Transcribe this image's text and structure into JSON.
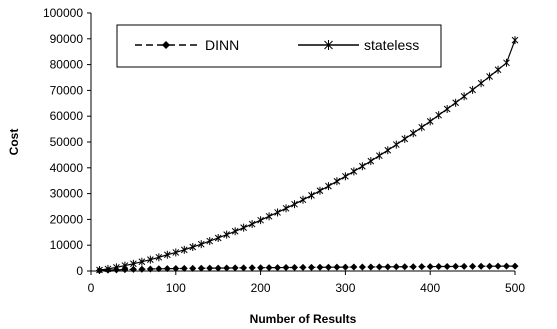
{
  "chart_data": {
    "type": "line",
    "xlabel": "Number of Results",
    "ylabel": "Cost",
    "xlim": [
      0,
      500
    ],
    "ylim": [
      0,
      100000
    ],
    "xticks": [
      0,
      100,
      200,
      300,
      400,
      500
    ],
    "yticks": [
      0,
      10000,
      20000,
      30000,
      40000,
      50000,
      60000,
      70000,
      80000,
      90000,
      100000
    ],
    "grid": false,
    "legend_position": "top-center",
    "series": [
      {
        "name": "DINN",
        "line_style": "dashed",
        "marker": "diamond",
        "color": "#000000",
        "x": [
          10,
          20,
          30,
          40,
          50,
          60,
          70,
          80,
          90,
          100,
          110,
          120,
          130,
          140,
          150,
          160,
          170,
          180,
          190,
          200,
          210,
          220,
          230,
          240,
          250,
          260,
          270,
          280,
          290,
          300,
          310,
          320,
          330,
          340,
          350,
          360,
          370,
          380,
          390,
          400,
          410,
          420,
          430,
          440,
          450,
          460,
          470,
          480,
          490,
          500
        ],
        "y": [
          200,
          350,
          450,
          550,
          650,
          700,
          780,
          850,
          900,
          950,
          1000,
          1030,
          1060,
          1100,
          1130,
          1160,
          1190,
          1220,
          1250,
          1280,
          1300,
          1330,
          1350,
          1380,
          1400,
          1420,
          1450,
          1470,
          1490,
          1510,
          1530,
          1550,
          1570,
          1590,
          1610,
          1630,
          1650,
          1670,
          1690,
          1710,
          1730,
          1750,
          1770,
          1790,
          1810,
          1830,
          1850,
          1870,
          1890,
          1900
        ]
      },
      {
        "name": "stateless",
        "line_style": "solid",
        "marker": "asterisk",
        "color": "#000000",
        "x": [
          10,
          20,
          30,
          40,
          50,
          60,
          70,
          80,
          90,
          100,
          110,
          120,
          130,
          140,
          150,
          160,
          170,
          180,
          190,
          200,
          210,
          220,
          230,
          240,
          250,
          260,
          270,
          280,
          290,
          300,
          310,
          320,
          330,
          340,
          350,
          360,
          370,
          380,
          390,
          400,
          410,
          420,
          430,
          440,
          450,
          460,
          470,
          480,
          490,
          500
        ],
        "y": [
          400,
          800,
          1400,
          2100,
          2800,
          3600,
          4400,
          5300,
          6300,
          7200,
          8200,
          9300,
          10400,
          11600,
          12800,
          14100,
          15400,
          16800,
          18200,
          19700,
          21200,
          22700,
          24300,
          25900,
          27600,
          29300,
          31100,
          32900,
          34800,
          36700,
          38600,
          40600,
          42600,
          44700,
          46800,
          49000,
          51200,
          53400,
          55700,
          58000,
          60400,
          62800,
          65200,
          67700,
          70200,
          72800,
          75400,
          78000,
          80700,
          89500
        ]
      }
    ]
  }
}
